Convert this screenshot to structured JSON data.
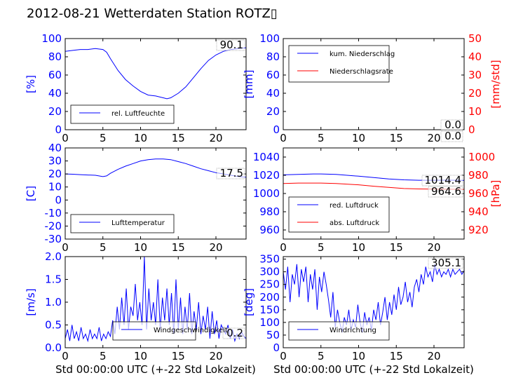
{
  "figure": {
    "title": "2012-08-21 Wetterdaten Station ROTZ",
    "title_glyph": "▯",
    "colors": {
      "primary": "#0000ff",
      "secondary": "#ff0000",
      "text": "#000000"
    }
  },
  "chart_data": [
    {
      "id": "humidity",
      "type": "line",
      "ylabel": "[%]",
      "xlim": [
        0,
        24
      ],
      "ylim": [
        0,
        100
      ],
      "xticks": [
        0,
        5,
        10,
        15,
        20
      ],
      "yticks": [
        0,
        20,
        40,
        60,
        80,
        100
      ],
      "ytick_color": "#0000ff",
      "series": [
        {
          "name": "rel. Luftfeuchte",
          "color": "#0000ff",
          "x": [
            0,
            1,
            2,
            3,
            4,
            5,
            5.5,
            6,
            7,
            8,
            9,
            10,
            11,
            12,
            13,
            13.5,
            14,
            15,
            16,
            17,
            18,
            19,
            20,
            21,
            22,
            23,
            24
          ],
          "y": [
            86,
            87,
            88,
            88,
            89,
            88,
            85,
            78,
            65,
            55,
            48,
            42,
            38,
            37,
            35,
            34,
            35,
            40,
            47,
            57,
            67,
            76,
            82,
            86,
            88,
            89,
            90
          ]
        }
      ],
      "current_value": "90.1",
      "legend": {
        "placement": "lower-left"
      }
    },
    {
      "id": "precipitation",
      "type": "line",
      "ylabel": "[mm]",
      "ylabel_right": "[mm/std]",
      "xlim": [
        0,
        24
      ],
      "ylim": [
        0,
        100
      ],
      "ylim_right": [
        0,
        50
      ],
      "xticks": [
        0,
        5,
        10,
        15,
        20
      ],
      "yticks": [
        0,
        20,
        40,
        60,
        80,
        100
      ],
      "yticks_right": [
        0,
        10,
        20,
        30,
        40,
        50
      ],
      "ytick_color": "#0000ff",
      "ytick_right_color": "#ff0000",
      "series": [
        {
          "name": "kum. Niederschlag",
          "color": "#0000ff",
          "x": [
            0,
            24
          ],
          "y": [
            0,
            0
          ]
        },
        {
          "name": "Niederschlagsrate",
          "color": "#ff0000",
          "axis": "right",
          "x": [
            0,
            24
          ],
          "y": [
            0,
            0
          ]
        }
      ],
      "current_values": [
        "0.0",
        "0.0"
      ],
      "legend": {
        "placement": "upper-left"
      }
    },
    {
      "id": "temperature",
      "type": "line",
      "ylabel": "[C]",
      "xlim": [
        0,
        24
      ],
      "ylim": [
        -30,
        40
      ],
      "xticks": [
        0,
        5,
        10,
        15,
        20
      ],
      "yticks": [
        -30,
        -20,
        -10,
        0,
        10,
        20,
        30,
        40
      ],
      "ytick_color": "#0000ff",
      "series": [
        {
          "name": "Lufttemperatur",
          "color": "#0000ff",
          "x": [
            0,
            1,
            2,
            3,
            4,
            5,
            5.5,
            6,
            7,
            8,
            9,
            10,
            11,
            12,
            13,
            14,
            15,
            16,
            17,
            18,
            19,
            20,
            21,
            22,
            23,
            24
          ],
          "y": [
            20,
            19.8,
            19.5,
            19.2,
            19,
            18,
            18.5,
            20.5,
            23.5,
            26,
            28,
            30,
            31,
            31.5,
            31.5,
            31,
            29.5,
            28,
            26,
            24,
            22.5,
            21,
            20,
            19,
            18,
            17.5
          ]
        }
      ],
      "current_value": "17.5",
      "legend": {
        "placement": "lower-left"
      }
    },
    {
      "id": "pressure",
      "type": "line",
      "ylabel_right": "[hPa]",
      "xlim": [
        0,
        24
      ],
      "ylim": [
        950,
        1050
      ],
      "ylim_right": [
        910,
        1010
      ],
      "xticks": [
        0,
        5,
        10,
        15,
        20
      ],
      "yticks": [
        960,
        980,
        1000,
        1020,
        1040
      ],
      "yticks_right": [
        920,
        940,
        960,
        980,
        1000
      ],
      "ytick_color": "#0000ff",
      "ytick_right_color": "#ff0000",
      "series": [
        {
          "name": "red. Luftdruck",
          "color": "#0000ff",
          "x": [
            0,
            2,
            4,
            5,
            7,
            10,
            12,
            14,
            16,
            18,
            20,
            22,
            24
          ],
          "y": [
            1020.5,
            1021,
            1021.5,
            1021.5,
            1021,
            1019,
            1017.5,
            1016,
            1015,
            1014.5,
            1014.5,
            1014.6,
            1014.4
          ]
        }
      ],
      "series_right": [
        {
          "name": "abs. Luftdruck",
          "color": "#ff0000",
          "x": [
            0,
            2,
            4,
            5,
            7,
            10,
            12,
            14,
            16,
            18,
            20,
            22,
            24
          ],
          "y": [
            971,
            971.5,
            971.5,
            971.5,
            971,
            969.5,
            968,
            966.8,
            965.5,
            965,
            964.8,
            964.7,
            964.6
          ]
        }
      ],
      "current_values": [
        "1014.4",
        "964.6"
      ],
      "legend": {
        "placement": "lower-left"
      }
    },
    {
      "id": "wind-speed",
      "type": "line",
      "ylabel": "[m/s]",
      "xlabel": "Std 00:00:00 UTC (+-22 Std Lokalzeit)",
      "xlim": [
        0,
        24
      ],
      "ylim": [
        0,
        2.0
      ],
      "xticks": [
        0,
        5,
        10,
        15,
        20
      ],
      "yticks": [
        0.0,
        0.5,
        1.0,
        1.5,
        2.0
      ],
      "ytick_color": "#0000ff",
      "series": [
        {
          "name": "Windgeschwindigkeit",
          "color": "#0000ff",
          "x": [
            0,
            0.3,
            0.6,
            0.9,
            1.2,
            1.5,
            1.8,
            2.1,
            2.4,
            2.7,
            3,
            3.3,
            3.6,
            3.9,
            4.2,
            4.5,
            4.8,
            5.1,
            5.4,
            5.7,
            6,
            6.3,
            6.6,
            6.9,
            7.2,
            7.5,
            7.8,
            8.1,
            8.4,
            8.7,
            9,
            9.3,
            9.6,
            9.9,
            10.2,
            10.5,
            10.8,
            11.1,
            11.4,
            11.7,
            12,
            12.3,
            12.6,
            12.9,
            13.2,
            13.5,
            13.8,
            14.1,
            14.4,
            14.7,
            15,
            15.3,
            15.6,
            15.9,
            16.2,
            16.5,
            16.8,
            17.1,
            17.4,
            17.7,
            18,
            18.3,
            18.6,
            18.9,
            19.2,
            19.5,
            19.8,
            20.1,
            20.4,
            20.7,
            21,
            21.3,
            21.6,
            21.9,
            22.2,
            22.5,
            22.8,
            23.1,
            23.4,
            23.7,
            24
          ],
          "y": [
            0.2,
            0.4,
            0.15,
            0.5,
            0.2,
            0.35,
            0.15,
            0.45,
            0.2,
            0.3,
            0.15,
            0.4,
            0.2,
            0.3,
            0.2,
            0.45,
            0.15,
            0.3,
            0.2,
            0.35,
            0.25,
            0.6,
            0.3,
            0.9,
            0.4,
            1.1,
            0.5,
            1.3,
            0.4,
            0.9,
            0.7,
            1.4,
            0.6,
            1.0,
            0.5,
            2.0,
            0.4,
            1.3,
            0.6,
            1.0,
            0.5,
            1.5,
            0.4,
            1.1,
            0.6,
            1.3,
            0.5,
            1.2,
            0.3,
            1.5,
            0.4,
            1.1,
            0.3,
            0.9,
            0.4,
            1.2,
            0.3,
            0.8,
            0.4,
            1.0,
            0.3,
            0.7,
            0.4,
            0.9,
            0.2,
            0.8,
            0.3,
            0.6,
            0.2,
            0.5,
            0.4,
            0.3,
            0.5,
            0.2,
            0.4,
            0.15,
            0.3,
            0.2,
            0.35,
            0.25,
            0.2
          ]
        }
      ],
      "current_value": "0.2",
      "legend": {
        "placement": "lower-center"
      }
    },
    {
      "id": "wind-direction",
      "type": "line",
      "ylabel": "[deg]",
      "xlabel": "Std 00:00:00 UTC (+-22 Std Lokalzeit)",
      "xlim": [
        0,
        24
      ],
      "ylim": [
        0,
        360
      ],
      "xticks": [
        0,
        5,
        10,
        15,
        20
      ],
      "yticks": [
        0,
        50,
        100,
        150,
        200,
        250,
        300,
        350
      ],
      "ytick_color": "#0000ff",
      "series": [
        {
          "name": "Windrichtung",
          "color": "#0000ff",
          "x": [
            0,
            0.3,
            0.6,
            0.9,
            1.2,
            1.5,
            1.8,
            2.1,
            2.4,
            2.7,
            3,
            3.3,
            3.6,
            3.9,
            4.2,
            4.5,
            4.8,
            5.1,
            5.4,
            5.7,
            6,
            6.3,
            6.6,
            6.9,
            7.2,
            7.5,
            7.8,
            8.1,
            8.4,
            8.7,
            9,
            9.3,
            9.6,
            9.9,
            10.2,
            10.5,
            10.8,
            11.1,
            11.4,
            11.7,
            12,
            12.3,
            12.6,
            12.9,
            13.2,
            13.5,
            13.8,
            14.1,
            14.4,
            14.7,
            15,
            15.3,
            15.6,
            15.9,
            16.2,
            16.5,
            16.8,
            17.1,
            17.4,
            17.7,
            18,
            18.3,
            18.6,
            18.9,
            19.2,
            19.5,
            19.8,
            20.1,
            20.4,
            20.7,
            21,
            21.3,
            21.6,
            21.9,
            22.2,
            22.5,
            22.8,
            23.1,
            23.4,
            23.7,
            24
          ],
          "y": [
            300,
            230,
            320,
            180,
            290,
            250,
            330,
            200,
            310,
            260,
            320,
            180,
            290,
            230,
            310,
            150,
            280,
            220,
            300,
            250,
            190,
            120,
            220,
            80,
            150,
            100,
            60,
            120,
            90,
            150,
            70,
            110,
            80,
            170,
            100,
            60,
            140,
            90,
            120,
            70,
            150,
            110,
            180,
            90,
            140,
            200,
            110,
            180,
            130,
            210,
            150,
            240,
            170,
            200,
            260,
            180,
            220,
            160,
            240,
            270,
            220,
            290,
            250,
            320,
            280,
            300,
            260,
            330,
            290,
            310,
            280,
            300,
            290,
            310,
            280,
            310,
            290,
            300,
            310,
            290,
            305
          ]
        }
      ],
      "current_value": "305.1",
      "legend": {
        "placement": "lower-left"
      }
    }
  ]
}
